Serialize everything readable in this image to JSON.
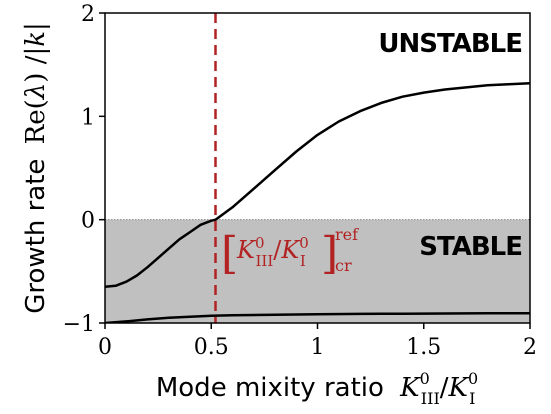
{
  "chart_data": {
    "type": "line",
    "xlabel": {
      "prefix": "Mode mixity ratio",
      "num": "K",
      "num_sub": "III",
      "num_sup": "0",
      "den": "K",
      "den_sub": "I",
      "den_sup": "0"
    },
    "ylabel": {
      "prefix": "Growth rate",
      "func": "Re",
      "arg": "λ",
      "den": "k"
    },
    "xlim": [
      0,
      2
    ],
    "ylim": [
      -1,
      2
    ],
    "xticks": [
      0,
      0.5,
      1,
      1.5,
      2
    ],
    "xtick_labels": [
      "0",
      "0.5",
      "1",
      "1.5",
      "2"
    ],
    "yticks": [
      -1,
      0,
      1,
      2
    ],
    "ytick_labels": [
      "−1",
      "0",
      "1",
      "2"
    ],
    "grid": false,
    "stable_region": {
      "y_from": -1,
      "y_to": 0,
      "color": "#c0c0c0",
      "label": "STABLE"
    },
    "unstable_label": "UNSTABLE",
    "critical_line": {
      "x": 0.52,
      "color": "#b22222",
      "label": {
        "num": "K",
        "num_sub": "III",
        "num_sup": "0",
        "den": "K",
        "den_sub": "I",
        "den_sup": "0",
        "sup": "ref",
        "sub": "cr"
      }
    },
    "series": [
      {
        "color": "#000000",
        "x": [
          0,
          0.05,
          0.1,
          0.15,
          0.2,
          0.25,
          0.3,
          0.35,
          0.4,
          0.45,
          0.5,
          0.52,
          0.6,
          0.7,
          0.8,
          0.9,
          1.0,
          1.1,
          1.2,
          1.3,
          1.4,
          1.5,
          1.6,
          1.7,
          1.8,
          1.9,
          2.0
        ],
        "y": [
          -0.65,
          -0.64,
          -0.6,
          -0.54,
          -0.46,
          -0.37,
          -0.28,
          -0.19,
          -0.12,
          -0.05,
          -0.01,
          0.0,
          0.12,
          0.3,
          0.48,
          0.66,
          0.82,
          0.95,
          1.05,
          1.13,
          1.19,
          1.23,
          1.26,
          1.28,
          1.3,
          1.31,
          1.32
        ]
      },
      {
        "color": "#000000",
        "x": [
          0,
          0.1,
          0.2,
          0.3,
          0.4,
          0.5,
          0.6,
          0.8,
          1.0,
          1.2,
          1.4,
          1.6,
          1.8,
          2.0
        ],
        "y": [
          -1.0,
          -0.985,
          -0.965,
          -0.95,
          -0.94,
          -0.93,
          -0.925,
          -0.92,
          -0.915,
          -0.912,
          -0.91,
          -0.908,
          -0.906,
          -0.905
        ]
      }
    ]
  }
}
